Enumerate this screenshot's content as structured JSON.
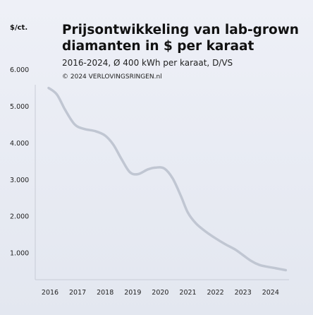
{
  "chart_data": {
    "type": "line",
    "title_line1": "Prijsontwikkeling van lab-grown",
    "title_line2": "diamanten in $ per karaat",
    "subtitle": "2016-2024, Ø 400 kWh per karaat, D/VS",
    "source": "© 2024 VERLOVINGSRINGEN.nl",
    "ylabel": "$/ct.",
    "xlabel": "",
    "ylim": [
      0,
      6000
    ],
    "xlim": [
      2015.9,
      2024.7
    ],
    "yticks": [
      {
        "value": 1000,
        "label": "1.000"
      },
      {
        "value": 2000,
        "label": "2.000"
      },
      {
        "value": 3000,
        "label": "3.000"
      },
      {
        "value": 4000,
        "label": "4.000"
      },
      {
        "value": 5000,
        "label": "5.000"
      },
      {
        "value": 6000,
        "label": "6.000"
      }
    ],
    "xticks": [
      {
        "value": 2016,
        "label": "2016"
      },
      {
        "value": 2017,
        "label": "2017"
      },
      {
        "value": 2018,
        "label": "2018"
      },
      {
        "value": 2019,
        "label": "2019"
      },
      {
        "value": 2020,
        "label": "2020"
      },
      {
        "value": 2021,
        "label": "2021"
      },
      {
        "value": 2022,
        "label": "2022"
      },
      {
        "value": 2023,
        "label": "2023"
      },
      {
        "value": 2024,
        "label": "2024"
      }
    ],
    "grid": false,
    "legend": "none",
    "series": [
      {
        "color": "#c0c6d2",
        "x": [
          2015.95,
          2016.25,
          2016.55,
          2016.9,
          2017.25,
          2017.65,
          2018.0,
          2018.3,
          2018.6,
          2018.9,
          2019.2,
          2019.55,
          2019.85,
          2020.15,
          2020.45,
          2020.75,
          2021.0,
          2021.3,
          2021.65,
          2022.0,
          2022.35,
          2022.7,
          2023.0,
          2023.3,
          2023.6,
          2023.9,
          2024.2,
          2024.55
        ],
        "y": [
          5500,
          5320,
          4900,
          4500,
          4380,
          4320,
          4200,
          3950,
          3550,
          3200,
          3150,
          3280,
          3330,
          3300,
          3030,
          2550,
          2100,
          1800,
          1580,
          1400,
          1240,
          1100,
          940,
          780,
          670,
          620,
          580,
          530
        ]
      }
    ]
  }
}
